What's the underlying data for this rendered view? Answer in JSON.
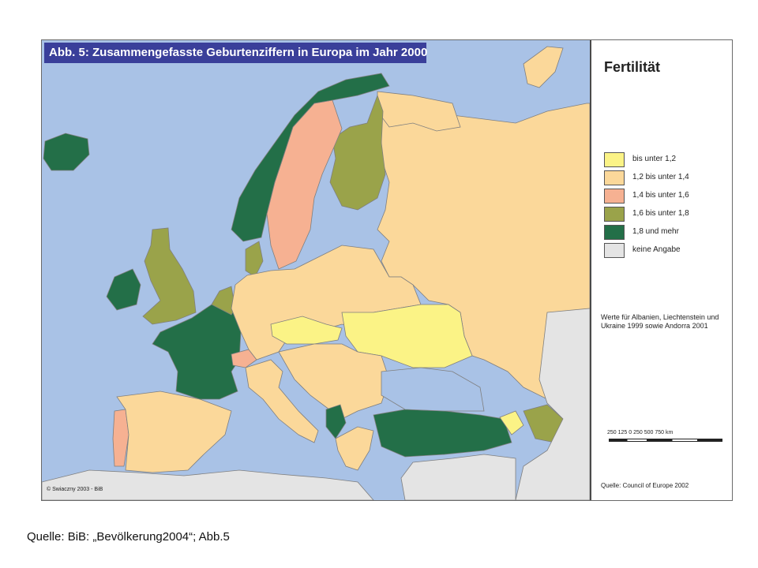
{
  "map": {
    "title": "Abb. 5: Zusammengefasste Geburtenziffern in Europa im Jahr 2000",
    "credit": "© Swiaczny 2003 - BiB",
    "colors": {
      "sea": "#a9c2e6",
      "bis_unter_1_2": "#fbf386",
      "1_2_bis_1_4": "#fbd89a",
      "1_4_bis_1_6": "#f6b192",
      "1_6_bis_1_8": "#9aa34a",
      "1_8_und_mehr": "#236f48",
      "keine_angabe": "#e4e4e4"
    },
    "regions_by_class": {
      "1_8_und_mehr": [
        "Norwegen",
        "Island",
        "Irland",
        "Frankreich",
        "Türkei",
        "Albanien",
        "Kosovo"
      ],
      "1_6_bis_1_8": [
        "Finnland",
        "Großbritannien",
        "Niederlande",
        "Belgien",
        "Dänemark",
        "Aserbaidschan"
      ],
      "1_4_bis_1_6": [
        "Schweden",
        "Portugal",
        "Schweiz"
      ],
      "1_2_bis_1_4": [
        "Russland",
        "Polen",
        "Deutschland",
        "Spanien",
        "Italien",
        "Rumänien",
        "Österreich"
      ],
      "bis_unter_1_2": [
        "Ukraine",
        "Tschechien",
        "Slowakei",
        "Georgien",
        "Armenien"
      ],
      "keine_angabe": [
        "Nordafrika",
        "Naher Osten",
        "Zentralasien"
      ]
    }
  },
  "legend": {
    "title": "Fertilität",
    "items": [
      {
        "label": "bis unter 1,2",
        "color": "#fbf386"
      },
      {
        "label": "1,2 bis unter 1,4",
        "color": "#fbd89a"
      },
      {
        "label": "1,4 bis unter 1,6",
        "color": "#f6b192"
      },
      {
        "label": "1,6 bis unter 1,8",
        "color": "#9aa34a"
      },
      {
        "label": "1,8 und mehr",
        "color": "#236f48"
      },
      {
        "label": "keine Angabe",
        "color": "#e4e4e4"
      }
    ],
    "note": "Werte für Albanien, Liechtenstein und Ukraine 1999 sowie Andorra 2001",
    "scale_label": "250 125  0      250      500     750 km",
    "source": "Quelle: Council of Europe 2002"
  },
  "caption": "Quelle: BiB: „Bevölkerung2004“; Abb.5"
}
